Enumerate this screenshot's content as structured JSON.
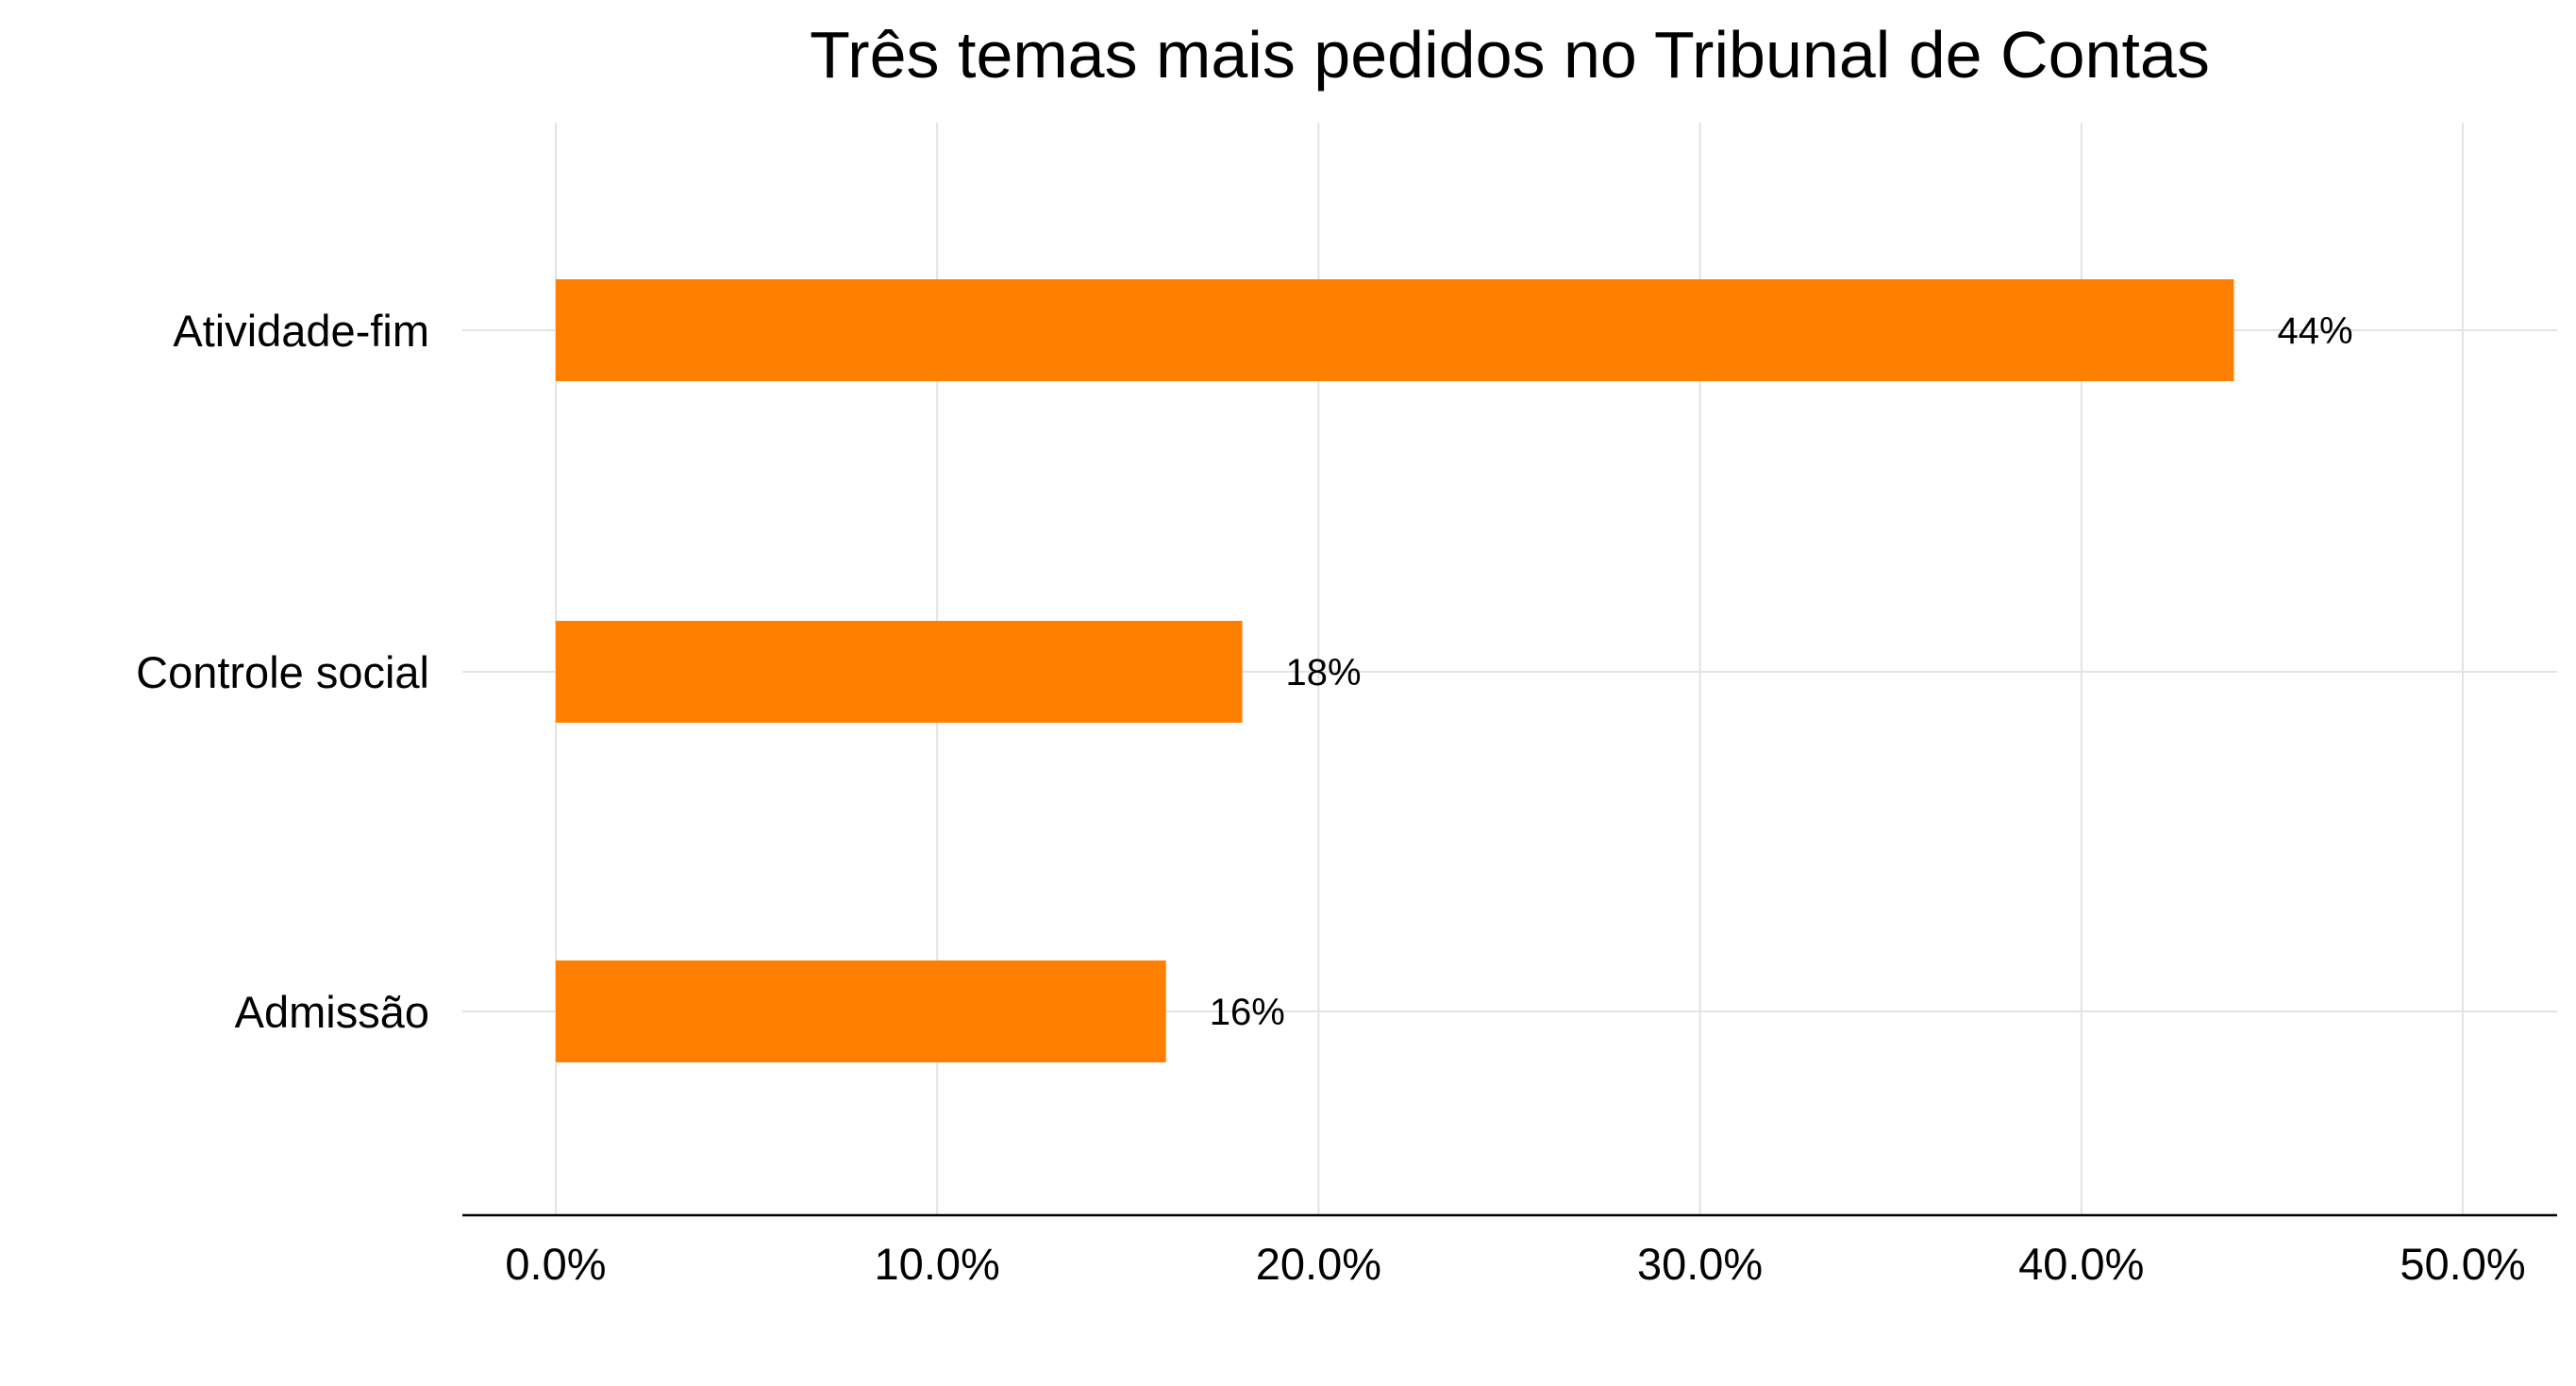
{
  "chart_data": {
    "type": "bar",
    "orientation": "horizontal",
    "title": "Três temas mais pedidos no Tribunal de Contas",
    "xlabel": "",
    "ylabel": "",
    "categories": [
      "Atividade-fim",
      "Controle social",
      "Admissão"
    ],
    "values": [
      44,
      18,
      16
    ],
    "data_labels": [
      "44%",
      "18%",
      "16%"
    ],
    "xlim": [
      0,
      50
    ],
    "x_ticks": [
      0,
      10,
      20,
      30,
      40,
      50
    ],
    "x_tick_labels": [
      "0.0%",
      "10.0%",
      "20.0%",
      "30.0%",
      "40.0%",
      "50.0%"
    ],
    "grid": true,
    "legend": "none",
    "colors": {
      "bar": "#FF8000",
      "grid": "#E3E3E3",
      "axis": "#000000",
      "text": "#000000"
    }
  }
}
